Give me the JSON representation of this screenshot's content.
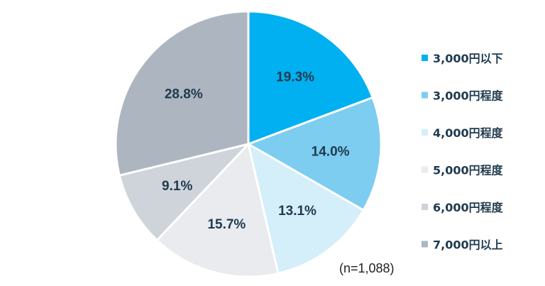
{
  "chart_data": {
    "type": "pie",
    "title": "",
    "categories": [
      "3,000円以下",
      "3,000円程度",
      "4,000円程度",
      "5,000円程度",
      "6,000円程度",
      "7,000円以上"
    ],
    "values": [
      19.3,
      14.0,
      13.1,
      15.7,
      9.1,
      28.8
    ],
    "value_labels": [
      "19.3%",
      "14.0%",
      "13.1%",
      "15.7%",
      "9.1%",
      "28.8%"
    ],
    "colors": [
      "#00b0f0",
      "#7ccdf0",
      "#d4eefa",
      "#e9ebef",
      "#cfd4db",
      "#adb6c0"
    ],
    "start": "12 o'clock",
    "direction": "clockwise",
    "legend_position": "right",
    "note": "(n=1,088)"
  }
}
